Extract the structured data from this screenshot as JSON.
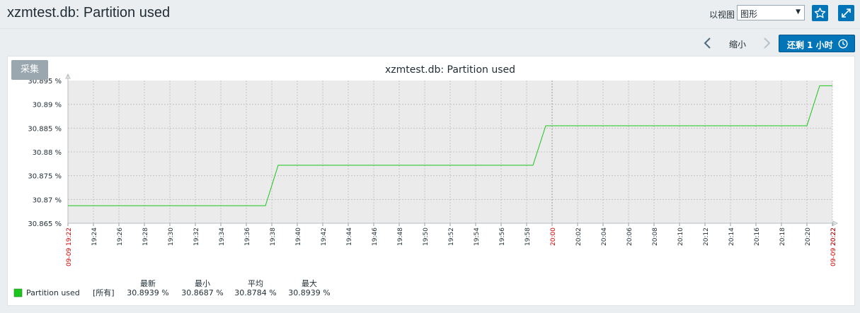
{
  "header": {
    "title": "xzmtest.db: Partition used",
    "view_label": "以视图",
    "view_selected": "图形"
  },
  "controls": {
    "zoom_out": "缩小",
    "back_label": "还剩 1 小时",
    "collect_label": "采集"
  },
  "icons": {
    "favorite": "star-icon",
    "fullscreen": "fullscreen-icon",
    "prev": "chevron-left-icon",
    "next": "chevron-right-icon",
    "clock": "clock-icon"
  },
  "colors": {
    "series": "#1bc51b",
    "accent": "#0275b8",
    "time_marker": "#dc0000"
  },
  "chart_data": {
    "type": "line",
    "title": "xzmtest.db: Partition used",
    "ylim": [
      30.865,
      30.895
    ],
    "yticks": [
      30.895,
      30.89,
      30.885,
      30.88,
      30.875,
      30.87,
      30.865
    ],
    "ytick_labels": [
      "30.895 %",
      "30.89 %",
      "30.885 %",
      "30.88 %",
      "30.875 %",
      "30.87 %",
      "30.865 %"
    ],
    "xlim_minutes": [
      0,
      60
    ],
    "xtick_labels": [
      "09-09 19:22",
      "19:24",
      "19:26",
      "19:28",
      "19:30",
      "19:32",
      "19:34",
      "19:36",
      "19:38",
      "19:40",
      "19:42",
      "19:44",
      "19:46",
      "19:48",
      "19:50",
      "19:52",
      "19:54",
      "19:56",
      "19:58",
      "20:00",
      "20:02",
      "20:04",
      "20:06",
      "20:08",
      "20:10",
      "20:12",
      "20:14",
      "20:16",
      "20:18",
      "20:20",
      "20:22",
      "09-09 20:22"
    ],
    "grid": true,
    "series": [
      {
        "name": "Partition used",
        "x": [
          "19:22",
          "19:37.5",
          "19:38.5",
          "19:58.5",
          "19:59.5",
          "20:20",
          "20:21",
          "20:22"
        ],
        "y": [
          30.8687,
          30.8687,
          30.8772,
          30.8772,
          30.8855,
          30.8855,
          30.8939,
          30.8939
        ]
      }
    ],
    "legend": {
      "headers": [
        "最新",
        "最小",
        "平均",
        "最大"
      ],
      "rows": [
        {
          "name": "Partition used",
          "scope": "[所有]",
          "last": "30.8939 %",
          "min": "30.8687 %",
          "avg": "30.8784 %",
          "max": "30.8939 %"
        }
      ]
    }
  }
}
